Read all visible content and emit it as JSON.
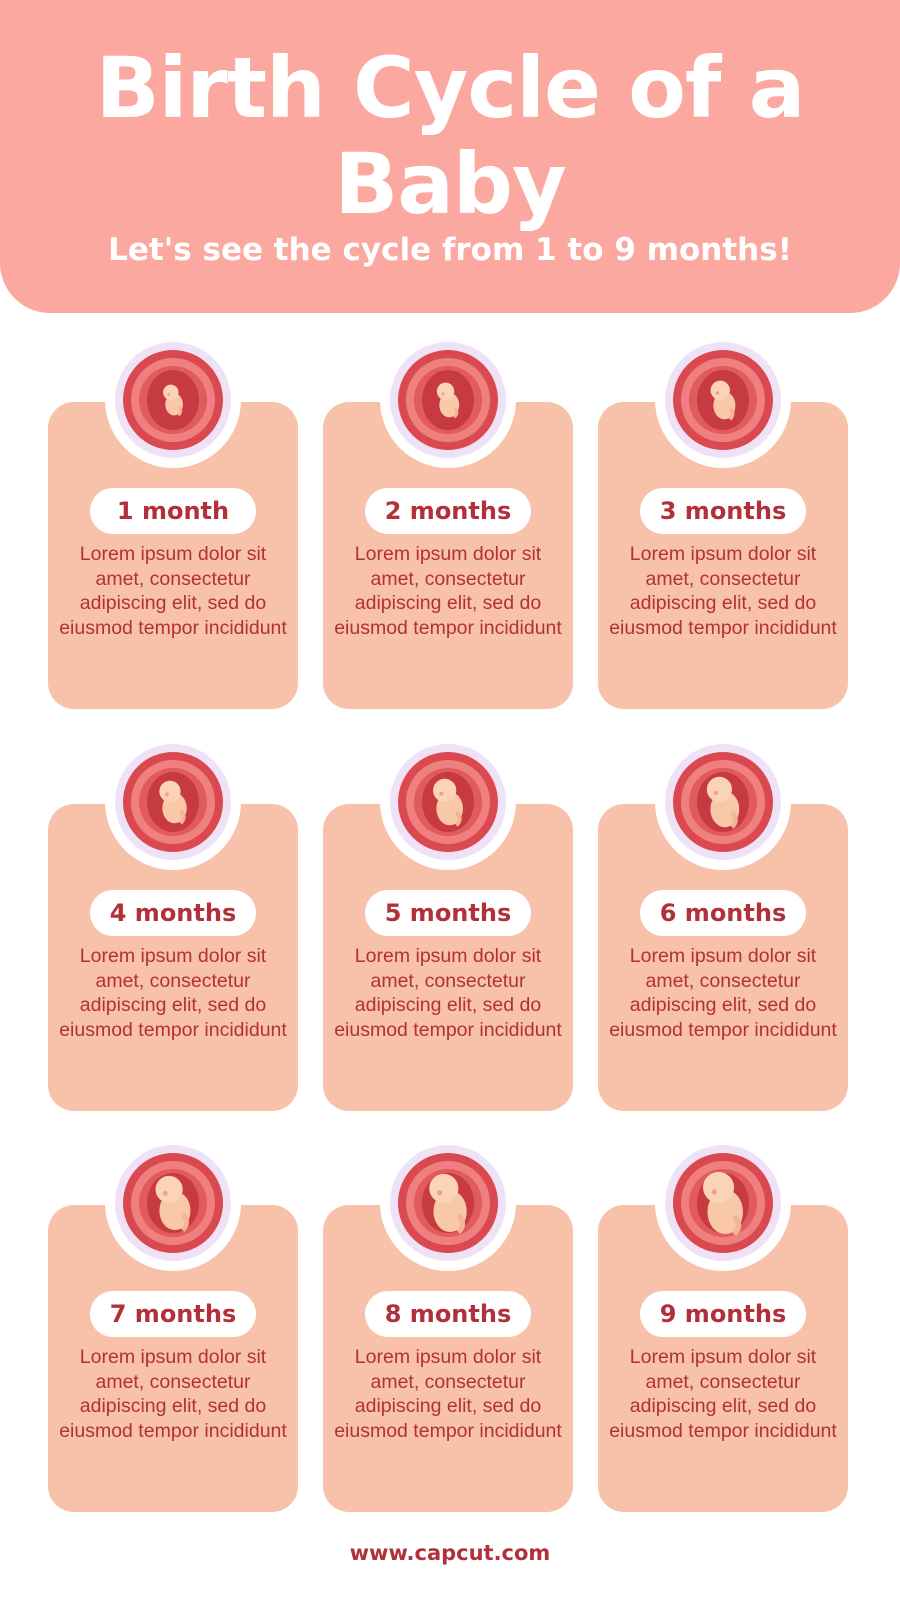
{
  "header": {
    "title_line1": "Birth Cycle of a",
    "title_line2": "Baby",
    "subtitle": "Let's see the cycle from 1 to 9 months!"
  },
  "cards": [
    {
      "label": "1 month",
      "text": "Lorem ipsum dolor sit amet, consectetur adipiscing elit, sed do eiusmod tempor incididunt"
    },
    {
      "label": "2 months",
      "text": "Lorem ipsum dolor sit amet, consectetur adipiscing elit, sed do eiusmod tempor incididunt"
    },
    {
      "label": "3 months",
      "text": "Lorem ipsum dolor sit amet, consectetur adipiscing elit, sed do eiusmod tempor incididunt"
    },
    {
      "label": "4 months",
      "text": "Lorem ipsum dolor sit amet, consectetur adipiscing elit, sed do eiusmod tempor incididunt"
    },
    {
      "label": "5 months",
      "text": "Lorem ipsum dolor sit amet, consectetur adipiscing elit, sed do eiusmod tempor incididunt"
    },
    {
      "label": "6 months",
      "text": "Lorem ipsum dolor sit amet, consectetur adipiscing elit, sed do eiusmod tempor incididunt"
    },
    {
      "label": "7 months",
      "text": "Lorem ipsum dolor sit amet, consectetur adipiscing elit, sed do eiusmod tempor incididunt"
    },
    {
      "label": "8 months",
      "text": "Lorem ipsum dolor sit amet, consectetur adipiscing elit, sed do eiusmod tempor incididunt"
    },
    {
      "label": "9 months",
      "text": "Lorem ipsum dolor sit amet, consectetur adipiscing elit, sed do eiusmod tempor incididunt"
    }
  ],
  "footer": {
    "url": "www.capcut.com"
  },
  "colors": {
    "header": "#fba8a0",
    "card": "#f8c2aa",
    "text": "#b2303a",
    "ring": "#f0e2f6"
  }
}
